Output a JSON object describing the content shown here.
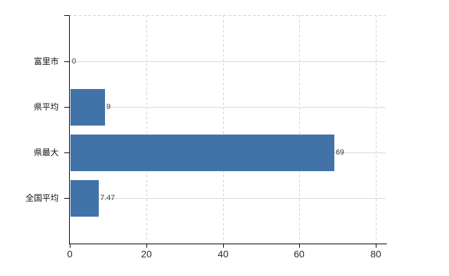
{
  "chart_data": {
    "type": "bar",
    "orientation": "horizontal",
    "title": "",
    "xlabel": "",
    "ylabel": "",
    "categories": [
      "富里市",
      "県平均",
      "県最大",
      "全国平均"
    ],
    "values": [
      0,
      9,
      69,
      7.47
    ],
    "data_labels": [
      "0",
      "9",
      "69",
      "7.47"
    ],
    "x_tick_values": [
      0,
      20,
      40,
      60,
      80
    ],
    "x_tick_labels": [
      "0",
      "20",
      "40",
      "60",
      "80"
    ],
    "xlim": [
      0,
      82.5
    ],
    "bar_color": "#4173a8",
    "axis_color": "#000000",
    "grid": {
      "horizontal": "solid",
      "vertical": "dashed",
      "top_border": "dashed",
      "h_color": "#d4dbd1",
      "v_color": "#d3d3d3"
    },
    "legend": false
  }
}
